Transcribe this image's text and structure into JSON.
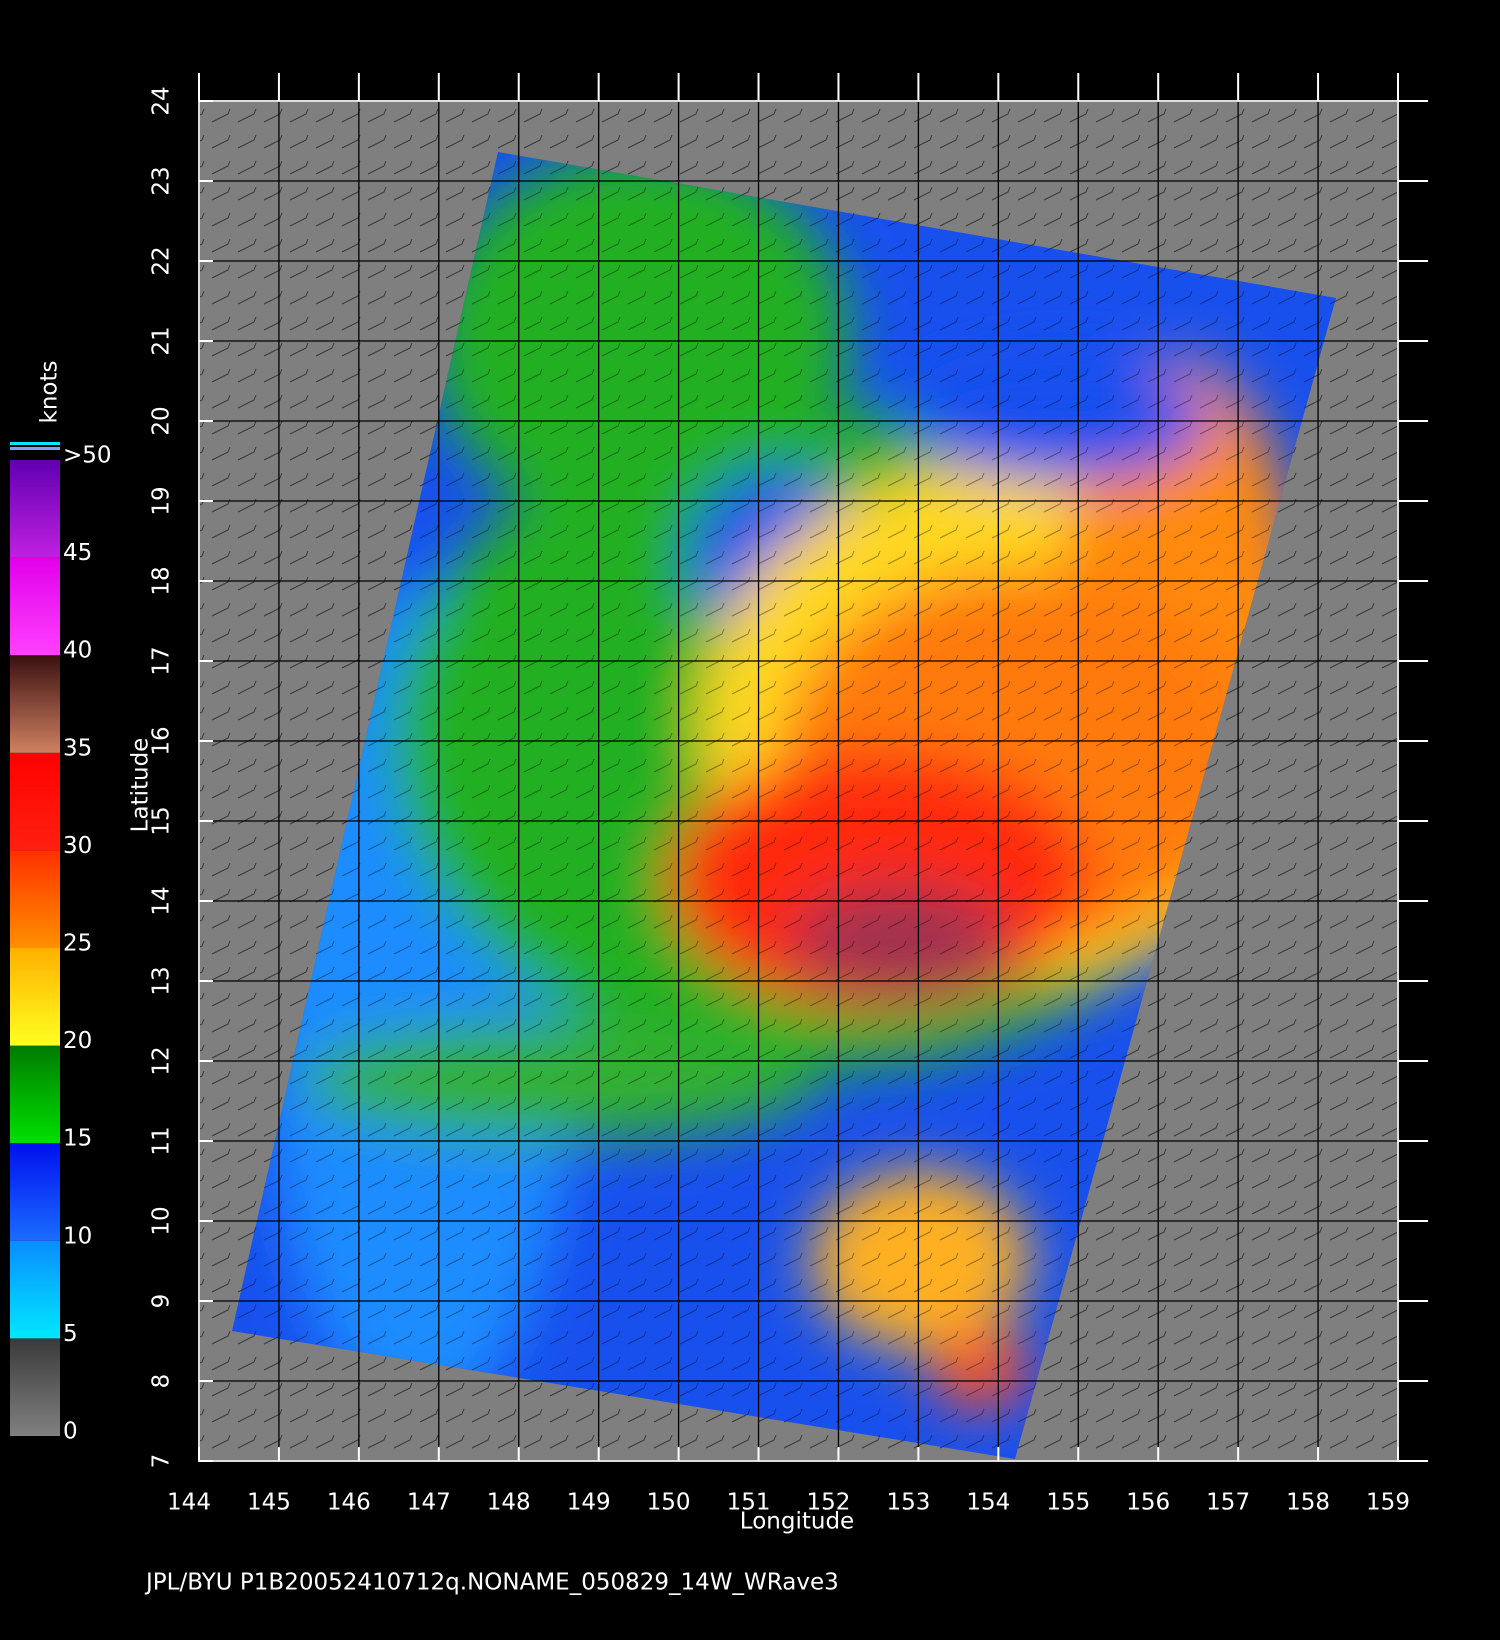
{
  "chart_data": {
    "type": "map",
    "title": "JPL/BYU  P1B20052410712q.NONAME_050829_14W_WRave3",
    "x_label": "Longitude",
    "y_label": "Latitude",
    "xlim": [
      144,
      159
    ],
    "xticks": [
      144,
      145,
      146,
      147,
      148,
      149,
      150,
      151,
      152,
      153,
      154,
      155,
      156,
      157,
      158,
      159
    ],
    "ylim": [
      7,
      24
    ],
    "yticks": [
      7,
      8,
      9,
      10,
      11,
      12,
      13,
      14,
      15,
      16,
      17,
      18,
      19,
      20,
      21,
      22,
      23,
      24
    ],
    "grid": true,
    "colorbar": {
      "label": "knots",
      "lim": [
        0,
        50
      ],
      "ticks": [
        0,
        5,
        10,
        15,
        20,
        25,
        30,
        35,
        40,
        45,
        {
          "value": 50,
          "label": ">50"
        }
      ],
      "colors": [
        [
          "#808080",
          "#3a3a3a"
        ],
        [
          "#00e8ff",
          "#0a8cff"
        ],
        [
          "#1a6cff",
          "#0010ee"
        ],
        [
          "#00e000",
          "#007a00"
        ],
        [
          "#ffff20",
          "#ffb000"
        ],
        [
          "#ff9000",
          "#ff3000"
        ],
        [
          "#ff2010",
          "#ff0000"
        ],
        [
          "#d08060",
          "#3a1010"
        ],
        [
          "#ff40ff",
          "#e000e8"
        ],
        [
          "#c020e0",
          "#6000b0"
        ]
      ]
    }
  }
}
